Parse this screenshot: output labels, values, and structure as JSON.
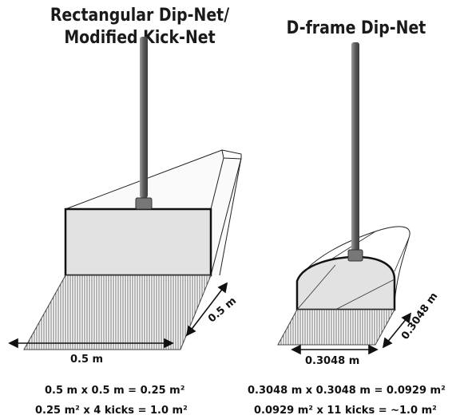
{
  "titles": {
    "rectangular_line1": "Rectangular Dip-Net/",
    "rectangular_line2": "Modified Kick-Net",
    "dframe": "D-frame Dip-Net"
  },
  "dimensions": {
    "rect_width": "0.5 m",
    "rect_depth": "0.5 m",
    "dframe_width": "0.3048 m",
    "dframe_depth": "0.3048 m"
  },
  "formulas": {
    "rect_area": "0.5 m x 0.5 m = 0.25 m²",
    "rect_total": "0.25 m² x 4 kicks = 1.0 m²",
    "dframe_area": "0.3048 m x 0.3048 m = 0.0929 m²",
    "dframe_total": "0.0929 m² x 11 kicks = ~1.0 m²"
  }
}
